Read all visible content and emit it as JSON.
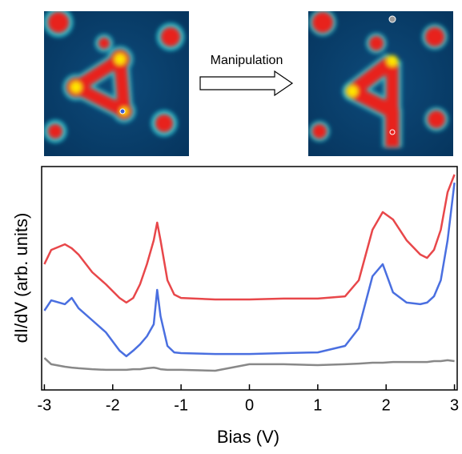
{
  "chart_data": {
    "type": "line",
    "annotations": [
      "Manipulation"
    ],
    "xlabel": "Bias (V)",
    "ylabel": "dI/dV (arb. units)",
    "x": [
      -3,
      -2.9,
      -2.7,
      -2.6,
      -2.5,
      -2.3,
      -2.1,
      -1.9,
      -1.8,
      -1.7,
      -1.6,
      -1.5,
      -1.4,
      -1.35,
      -1.3,
      -1.2,
      -1.1,
      -1,
      -0.5,
      0,
      0.5,
      1,
      1.4,
      1.6,
      1.8,
      1.95,
      2.1,
      2.3,
      2.5,
      2.6,
      2.7,
      2.8,
      2.9,
      3
    ],
    "series": [
      {
        "color": "#e8474a",
        "values": [
          5.63,
          6.27,
          6.52,
          6.34,
          6.06,
          5.27,
          4.73,
          4.12,
          3.91,
          4.12,
          4.73,
          5.63,
          6.7,
          7.49,
          6.7,
          4.91,
          4.27,
          4.12,
          4.05,
          4.05,
          4.09,
          4.09,
          4.19,
          4.91,
          7.17,
          7.96,
          7.63,
          6.7,
          6.06,
          5.91,
          6.27,
          7.17,
          8.85,
          9.64
        ]
      },
      {
        "color": "#4a6fe0",
        "values": [
          3.55,
          4.01,
          3.84,
          4.12,
          3.66,
          3.12,
          2.58,
          1.76,
          1.51,
          1.76,
          2.04,
          2.4,
          2.94,
          4.48,
          3.3,
          1.97,
          1.68,
          1.65,
          1.61,
          1.61,
          1.65,
          1.68,
          1.97,
          2.76,
          5.09,
          5.63,
          4.37,
          3.91,
          3.84,
          3.91,
          4.19,
          4.91,
          6.7,
          9.28
        ]
      },
      {
        "color": "#888888",
        "values": [
          1.43,
          1.15,
          1.04,
          1.0,
          0.97,
          0.93,
          0.9,
          0.9,
          0.9,
          0.93,
          0.93,
          0.97,
          1.0,
          0.97,
          0.93,
          0.9,
          0.9,
          0.9,
          0.86,
          1.15,
          1.15,
          1.11,
          1.15,
          1.18,
          1.22,
          1.22,
          1.25,
          1.25,
          1.25,
          1.25,
          1.29,
          1.29,
          1.33,
          1.29
        ]
      }
    ],
    "xlim": [
      -3.04,
      3.04
    ],
    "ylim": [
      0,
      10
    ],
    "xticks": [
      -3,
      -2,
      -1,
      0,
      1,
      2,
      3
    ]
  }
}
